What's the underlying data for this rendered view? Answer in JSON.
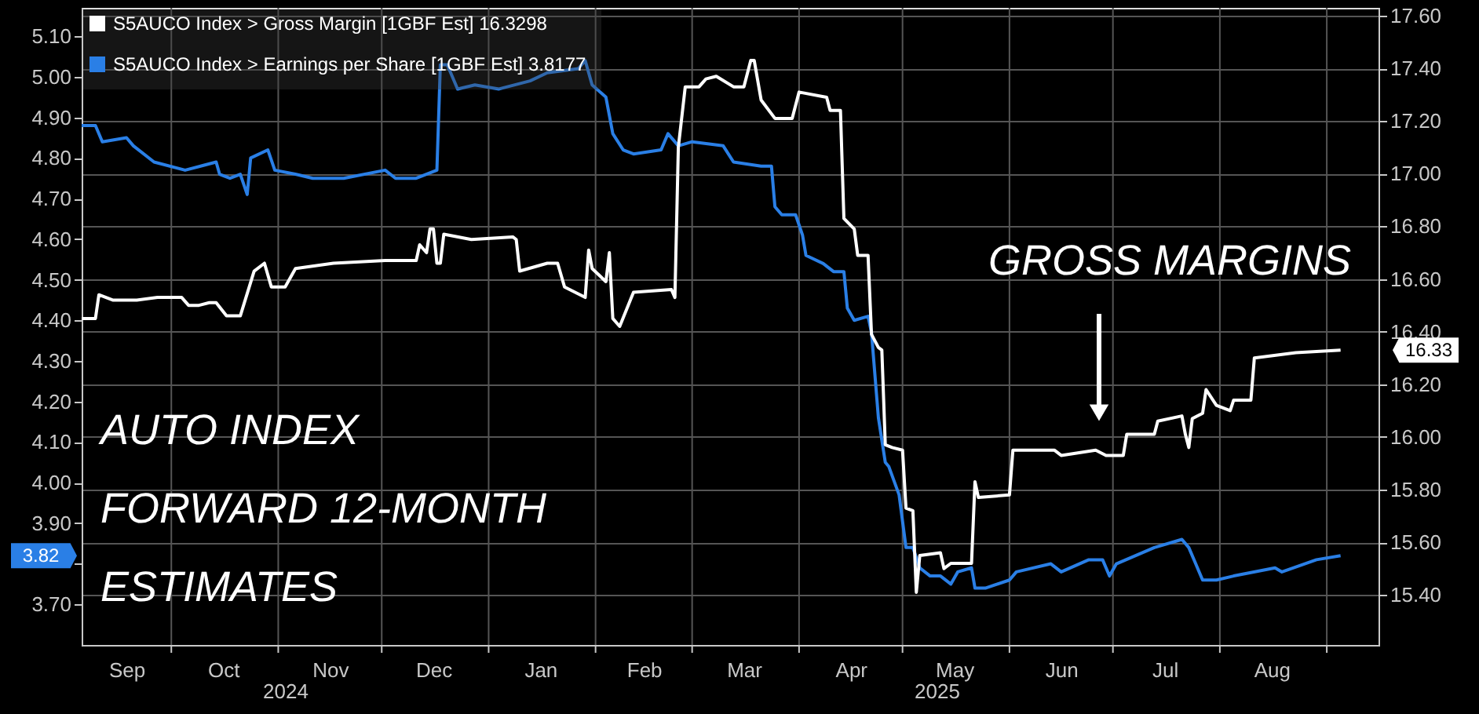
{
  "chart_data": {
    "type": "line",
    "xlim": [
      "2024-09-05",
      "2025-09-16"
    ],
    "xticks": [
      {
        "value": "2024-09-18",
        "label": "Sep"
      },
      {
        "value": "2024-10-01",
        "label": null
      },
      {
        "value": "2024-10-16",
        "label": "Oct"
      },
      {
        "value": "2024-11-01",
        "label": null
      },
      {
        "value": "2024-11-16",
        "label": "Nov"
      },
      {
        "value": "2024-12-01",
        "label": null
      },
      {
        "value": "2024-12-16",
        "label": "Dec"
      },
      {
        "value": "2025-01-01",
        "label": null
      },
      {
        "value": "2025-01-16",
        "label": "Jan"
      },
      {
        "value": "2025-02-01",
        "label": null
      },
      {
        "value": "2025-02-15",
        "label": "Feb"
      },
      {
        "value": "2025-03-01",
        "label": null
      },
      {
        "value": "2025-03-16",
        "label": "Mar"
      },
      {
        "value": "2025-04-01",
        "label": null
      },
      {
        "value": "2025-04-16",
        "label": "Apr"
      },
      {
        "value": "2025-05-01",
        "label": null
      },
      {
        "value": "2025-05-16",
        "label": "May"
      },
      {
        "value": "2025-06-01",
        "label": null
      },
      {
        "value": "2025-06-16",
        "label": "Jun"
      },
      {
        "value": "2025-07-01",
        "label": null
      },
      {
        "value": "2025-07-16",
        "label": "Jul"
      },
      {
        "value": "2025-08-01",
        "label": null
      },
      {
        "value": "2025-08-16",
        "label": "Aug"
      },
      {
        "value": "2025-09-01",
        "label": null
      }
    ],
    "ylim": [
      3.6,
      5.17
    ],
    "yticks": [
      {
        "value": 3.7,
        "label": "3.70"
      },
      {
        "value": 3.8,
        "label": null
      },
      {
        "value": 3.9,
        "label": "3.90"
      },
      {
        "value": 4.0,
        "label": "4.00"
      },
      {
        "value": 4.1,
        "label": "4.10"
      },
      {
        "value": 4.2,
        "label": "4.20"
      },
      {
        "value": 4.3,
        "label": "4.30"
      },
      {
        "value": 4.4,
        "label": "4.40"
      },
      {
        "value": 4.5,
        "label": "4.50"
      },
      {
        "value": 4.6,
        "label": "4.60"
      },
      {
        "value": 4.7,
        "label": "4.70"
      },
      {
        "value": 4.8,
        "label": "4.80"
      },
      {
        "value": 4.9,
        "label": "4.90"
      },
      {
        "value": 5.0,
        "label": "5.00"
      },
      {
        "value": 5.1,
        "label": "5.10"
      }
    ],
    "y2lim": [
      15.21,
      17.63
    ],
    "y2ticks": [
      {
        "value": 15.4,
        "label": "15.40"
      },
      {
        "value": 15.6,
        "label": "15.60"
      },
      {
        "value": 15.8,
        "label": "15.80"
      },
      {
        "value": 16.0,
        "label": "16.00"
      },
      {
        "value": 16.2,
        "label": "16.20"
      },
      {
        "value": 16.4,
        "label": "16.40"
      },
      {
        "value": 16.6,
        "label": "16.60"
      },
      {
        "value": 16.8,
        "label": "16.80"
      },
      {
        "value": 17.0,
        "label": "17.00"
      },
      {
        "value": 17.2,
        "label": "17.20"
      },
      {
        "value": 17.4,
        "label": "17.40"
      },
      {
        "value": 17.6,
        "label": "17.60"
      }
    ],
    "grid": true,
    "legend": "top left",
    "series": [
      {
        "name": "S5AUCO Index > Gross Margin [1GBF Est]     16.3298",
        "color": "#ffffff",
        "axis": "y2",
        "x": [
          "2024-09-05",
          "2024-09-09",
          "2024-09-10",
          "2024-09-14",
          "2024-09-21",
          "2024-09-27",
          "2024-10-04",
          "2024-10-06",
          "2024-10-09",
          "2024-10-12",
          "2024-10-14",
          "2024-10-17",
          "2024-10-21",
          "2024-10-25",
          "2024-10-28",
          "2024-10-30",
          "2024-11-03",
          "2024-11-06",
          "2024-11-17",
          "2024-12-02",
          "2024-12-11",
          "2024-12-12",
          "2024-12-14",
          "2024-12-15",
          "2024-12-16",
          "2024-12-17",
          "2024-12-18",
          "2024-12-19",
          "2024-12-27",
          "2025-01-08",
          "2025-01-09",
          "2025-01-10",
          "2025-01-18",
          "2025-01-21",
          "2025-01-23",
          "2025-01-29",
          "2025-01-30",
          "2025-01-31",
          "2025-02-04",
          "2025-02-05",
          "2025-02-06",
          "2025-02-08",
          "2025-02-12",
          "2025-02-23",
          "2025-02-24",
          "2025-02-25",
          "2025-02-27",
          "2025-03-03",
          "2025-03-05",
          "2025-03-08",
          "2025-03-13",
          "2025-03-16",
          "2025-03-18",
          "2025-03-19",
          "2025-03-21",
          "2025-03-25",
          "2025-03-30",
          "2025-04-01",
          "2025-04-09",
          "2025-04-10",
          "2025-04-13",
          "2025-04-14",
          "2025-04-17",
          "2025-04-18",
          "2025-04-21",
          "2025-04-22",
          "2025-04-24",
          "2025-04-25",
          "2025-04-26",
          "2025-04-28",
          "2025-05-01",
          "2025-05-02",
          "2025-05-04",
          "2025-05-05",
          "2025-05-06",
          "2025-05-12",
          "2025-05-13",
          "2025-05-15",
          "2025-05-21",
          "2025-05-22",
          "2025-05-23",
          "2025-06-01",
          "2025-06-02",
          "2025-06-14",
          "2025-06-16",
          "2025-06-26",
          "2025-06-29",
          "2025-07-04",
          "2025-07-05",
          "2025-07-13",
          "2025-07-14",
          "2025-07-21",
          "2025-07-22",
          "2025-07-23",
          "2025-07-24",
          "2025-07-27",
          "2025-07-28",
          "2025-07-31",
          "2025-08-04",
          "2025-08-05",
          "2025-08-10",
          "2025-08-11",
          "2025-08-23",
          "2025-09-05"
        ],
        "values": [
          16.45,
          16.45,
          16.54,
          16.52,
          16.52,
          16.53,
          16.53,
          16.5,
          16.5,
          16.51,
          16.51,
          16.46,
          16.46,
          16.63,
          16.66,
          16.57,
          16.57,
          16.64,
          16.66,
          16.67,
          16.67,
          16.73,
          16.7,
          16.79,
          16.79,
          16.66,
          16.66,
          16.77,
          16.75,
          16.76,
          16.75,
          16.63,
          16.66,
          16.66,
          16.57,
          16.53,
          16.71,
          16.64,
          16.59,
          16.7,
          16.45,
          16.42,
          16.55,
          16.56,
          16.53,
          17.1,
          17.33,
          17.33,
          17.36,
          17.37,
          17.33,
          17.33,
          17.43,
          17.43,
          17.28,
          17.21,
          17.21,
          17.31,
          17.29,
          17.24,
          17.24,
          16.83,
          16.79,
          16.69,
          16.69,
          16.39,
          16.34,
          16.33,
          15.97,
          15.96,
          15.95,
          15.73,
          15.72,
          15.41,
          15.55,
          15.56,
          15.5,
          15.52,
          15.52,
          15.83,
          15.77,
          15.78,
          15.95,
          15.95,
          15.93,
          15.95,
          15.93,
          15.93,
          16.01,
          16.01,
          16.06,
          16.08,
          16.01,
          15.96,
          16.07,
          16.09,
          16.18,
          16.12,
          16.1,
          16.14,
          16.14,
          16.3,
          16.32,
          16.33
        ]
      },
      {
        "name": "S5AUCO Index > Earnings per Share [1GBF Est]   3.8177",
        "color": "#2a7fe6",
        "axis": "y",
        "x": [
          "2024-09-05",
          "2024-09-07",
          "2024-09-09",
          "2024-09-11",
          "2024-09-18",
          "2024-09-20",
          "2024-09-26",
          "2024-10-05",
          "2024-10-14",
          "2024-10-15",
          "2024-10-18",
          "2024-10-21",
          "2024-10-23",
          "2024-10-24",
          "2024-10-29",
          "2024-10-31",
          "2024-11-06",
          "2024-11-11",
          "2024-11-20",
          "2024-12-02",
          "2024-12-05",
          "2024-12-11",
          "2024-12-17",
          "2024-12-18",
          "2024-12-20",
          "2024-12-23",
          "2024-12-28",
          "2025-01-04",
          "2025-01-13",
          "2025-01-18",
          "2025-01-27",
          "2025-01-29",
          "2025-01-31",
          "2025-02-04",
          "2025-02-06",
          "2025-02-09",
          "2025-02-12",
          "2025-02-20",
          "2025-02-22",
          "2025-02-25",
          "2025-03-01",
          "2025-03-10",
          "2025-03-13",
          "2025-03-21",
          "2025-03-24",
          "2025-03-25",
          "2025-03-27",
          "2025-03-31",
          "2025-04-02",
          "2025-04-03",
          "2025-04-08",
          "2025-04-11",
          "2025-04-14",
          "2025-04-15",
          "2025-04-17",
          "2025-04-21",
          "2025-04-22",
          "2025-04-24",
          "2025-04-26",
          "2025-04-27",
          "2025-04-30",
          "2025-05-02",
          "2025-05-04",
          "2025-05-06",
          "2025-05-09",
          "2025-05-12",
          "2025-05-15",
          "2025-05-17",
          "2025-05-21",
          "2025-05-22",
          "2025-05-25",
          "2025-06-01",
          "2025-06-03",
          "2025-06-13",
          "2025-06-16",
          "2025-06-24",
          "2025-06-28",
          "2025-06-30",
          "2025-07-02",
          "2025-07-13",
          "2025-07-21",
          "2025-07-23",
          "2025-07-25",
          "2025-07-27",
          "2025-07-31",
          "2025-08-05",
          "2025-08-17",
          "2025-08-19",
          "2025-08-29",
          "2025-09-05"
        ],
        "values": [
          4.88,
          4.88,
          4.88,
          4.84,
          4.85,
          4.83,
          4.79,
          4.77,
          4.79,
          4.76,
          4.75,
          4.76,
          4.71,
          4.8,
          4.82,
          4.77,
          4.76,
          4.75,
          4.75,
          4.77,
          4.75,
          4.75,
          4.77,
          5.03,
          5.03,
          4.97,
          4.98,
          4.97,
          4.99,
          5.01,
          5.02,
          5.04,
          4.98,
          4.95,
          4.86,
          4.82,
          4.81,
          4.82,
          4.86,
          4.83,
          4.84,
          4.83,
          4.79,
          4.78,
          4.78,
          4.68,
          4.66,
          4.66,
          4.61,
          4.56,
          4.54,
          4.52,
          4.52,
          4.43,
          4.4,
          4.41,
          4.37,
          4.16,
          4.05,
          4.04,
          3.97,
          3.84,
          3.84,
          3.79,
          3.77,
          3.77,
          3.75,
          3.78,
          3.79,
          3.74,
          3.74,
          3.76,
          3.78,
          3.8,
          3.78,
          3.81,
          3.81,
          3.77,
          3.8,
          3.84,
          3.86,
          3.84,
          3.8,
          3.76,
          3.76,
          3.77,
          3.79,
          3.78,
          3.81,
          3.82
        ]
      }
    ],
    "annotations": [
      "AUTO INDEX\nFORWARD 12-MONTH\nESTIMATES",
      "GROSS MARGINS",
      "2024",
      "2025",
      "16.33",
      "3.82"
    ]
  }
}
